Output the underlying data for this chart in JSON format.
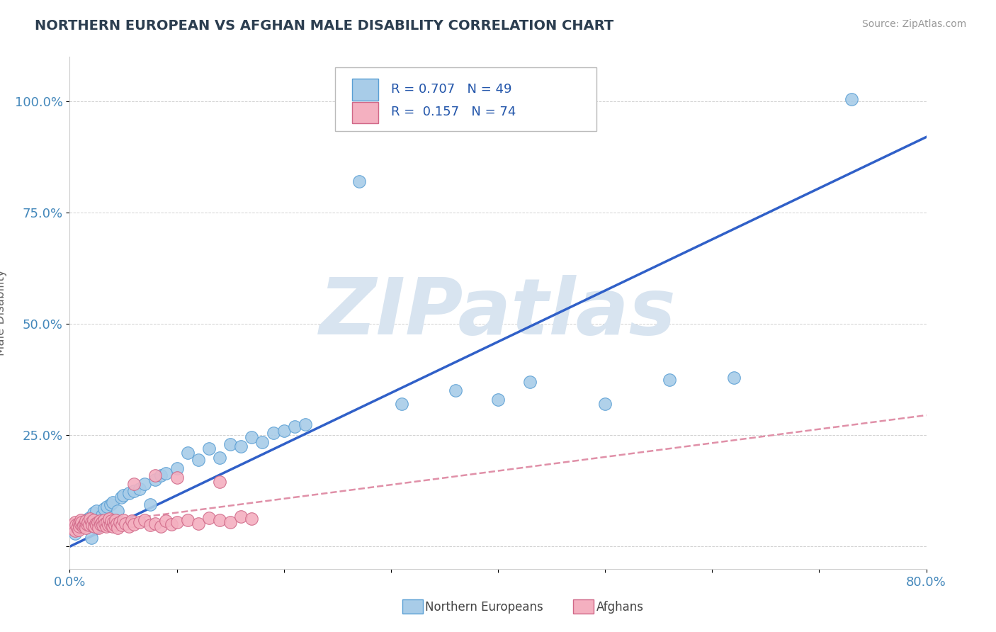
{
  "title": "NORTHERN EUROPEAN VS AFGHAN MALE DISABILITY CORRELATION CHART",
  "source_text": "Source: ZipAtlas.com",
  "ylabel": "Male Disability",
  "xlim": [
    0.0,
    0.8
  ],
  "ylim": [
    -0.05,
    1.1
  ],
  "xticks": [
    0.0,
    0.1,
    0.2,
    0.3,
    0.4,
    0.5,
    0.6,
    0.7,
    0.8
  ],
  "xticklabels": [
    "0.0%",
    "",
    "",
    "",
    "",
    "",
    "",
    "",
    "80.0%"
  ],
  "yticks": [
    0.0,
    0.25,
    0.5,
    0.75,
    1.0
  ],
  "yticklabels": [
    "",
    "25.0%",
    "50.0%",
    "75.0%",
    "100.0%"
  ],
  "R_northern": 0.707,
  "N_northern": 49,
  "R_afghan": 0.157,
  "N_afghan": 74,
  "northern_color": "#a8cce8",
  "northern_edge": "#5a9fd4",
  "afghan_color": "#f4b0c0",
  "afghan_edge": "#d06888",
  "northern_line_color": "#3060c8",
  "afghan_line_color": "#e090a8",
  "watermark": "ZIPatlas",
  "watermark_color": "#d8e4f0",
  "title_color": "#2c3e50",
  "source_color": "#999999",
  "northern_scatter_x": [
    0.005,
    0.008,
    0.01,
    0.012,
    0.015,
    0.018,
    0.02,
    0.022,
    0.025,
    0.028,
    0.03,
    0.032,
    0.035,
    0.038,
    0.04,
    0.042,
    0.045,
    0.048,
    0.05,
    0.055,
    0.06,
    0.065,
    0.07,
    0.075,
    0.08,
    0.085,
    0.09,
    0.1,
    0.11,
    0.12,
    0.13,
    0.14,
    0.15,
    0.16,
    0.17,
    0.18,
    0.19,
    0.2,
    0.21,
    0.22,
    0.27,
    0.31,
    0.36,
    0.4,
    0.43,
    0.5,
    0.56,
    0.62,
    0.73
  ],
  "northern_scatter_y": [
    0.03,
    0.045,
    0.05,
    0.055,
    0.06,
    0.065,
    0.02,
    0.075,
    0.08,
    0.06,
    0.07,
    0.085,
    0.09,
    0.095,
    0.1,
    0.055,
    0.08,
    0.11,
    0.115,
    0.12,
    0.125,
    0.13,
    0.14,
    0.095,
    0.15,
    0.16,
    0.165,
    0.175,
    0.21,
    0.195,
    0.22,
    0.2,
    0.23,
    0.225,
    0.245,
    0.235,
    0.255,
    0.26,
    0.27,
    0.275,
    0.82,
    0.32,
    0.35,
    0.33,
    0.37,
    0.32,
    0.375,
    0.38,
    1.005
  ],
  "afghan_scatter_x": [
    0.002,
    0.003,
    0.004,
    0.005,
    0.005,
    0.006,
    0.007,
    0.008,
    0.008,
    0.009,
    0.01,
    0.01,
    0.011,
    0.012,
    0.013,
    0.014,
    0.015,
    0.015,
    0.016,
    0.017,
    0.018,
    0.019,
    0.02,
    0.021,
    0.022,
    0.023,
    0.024,
    0.025,
    0.026,
    0.027,
    0.028,
    0.029,
    0.03,
    0.031,
    0.032,
    0.033,
    0.034,
    0.035,
    0.036,
    0.037,
    0.038,
    0.039,
    0.04,
    0.041,
    0.042,
    0.043,
    0.044,
    0.045,
    0.047,
    0.049,
    0.05,
    0.052,
    0.055,
    0.058,
    0.06,
    0.065,
    0.07,
    0.075,
    0.08,
    0.085,
    0.09,
    0.095,
    0.1,
    0.11,
    0.12,
    0.13,
    0.14,
    0.15,
    0.16,
    0.17,
    0.06,
    0.1,
    0.14,
    0.08
  ],
  "afghan_scatter_y": [
    0.04,
    0.05,
    0.045,
    0.035,
    0.055,
    0.048,
    0.042,
    0.052,
    0.038,
    0.045,
    0.05,
    0.06,
    0.055,
    0.045,
    0.048,
    0.052,
    0.058,
    0.042,
    0.05,
    0.055,
    0.048,
    0.062,
    0.055,
    0.048,
    0.06,
    0.045,
    0.052,
    0.048,
    0.055,
    0.042,
    0.058,
    0.05,
    0.055,
    0.048,
    0.06,
    0.052,
    0.045,
    0.055,
    0.048,
    0.062,
    0.05,
    0.058,
    0.045,
    0.055,
    0.048,
    0.06,
    0.052,
    0.042,
    0.055,
    0.048,
    0.06,
    0.052,
    0.045,
    0.058,
    0.05,
    0.055,
    0.06,
    0.048,
    0.052,
    0.045,
    0.058,
    0.05,
    0.055,
    0.06,
    0.052,
    0.065,
    0.06,
    0.055,
    0.068,
    0.062,
    0.14,
    0.155,
    0.145,
    0.16
  ],
  "northern_trend_x": [
    0.0,
    0.8
  ],
  "northern_trend_y": [
    0.0,
    0.92
  ],
  "afghan_trend_x": [
    0.0,
    0.8
  ],
  "afghan_trend_y": [
    0.045,
    0.295
  ]
}
